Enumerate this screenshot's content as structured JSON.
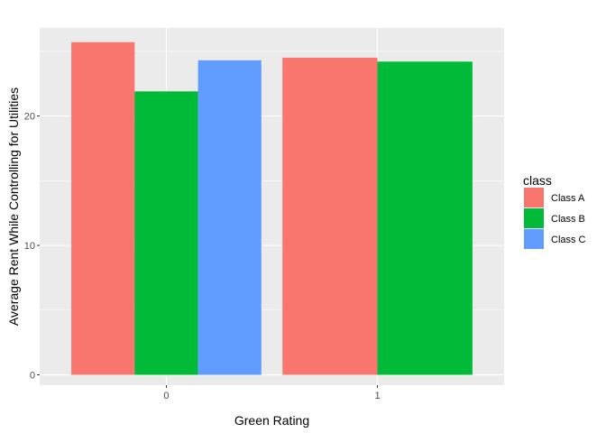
{
  "chart_data": {
    "type": "bar",
    "title": "",
    "xlabel": "Green Rating",
    "ylabel": "Average Rent While Controlling for Utilities",
    "categories": [
      "0",
      "1"
    ],
    "y_ticks": [
      "0",
      "10",
      "20"
    ],
    "ylim": [
      -0.8,
      26.8
    ],
    "grid": true,
    "legend_title": "class",
    "legend_position": "right",
    "series": [
      {
        "name": "Class A",
        "color": "#F8766D",
        "values": [
          25.7,
          24.5
        ]
      },
      {
        "name": "Class B",
        "color": "#00BA38",
        "values": [
          21.9,
          24.2
        ]
      },
      {
        "name": "Class C",
        "color": "#619CFF",
        "values": [
          24.3,
          null
        ]
      }
    ],
    "panel_background": "#EBEBEB",
    "grid_color": "#FFFFFF"
  }
}
